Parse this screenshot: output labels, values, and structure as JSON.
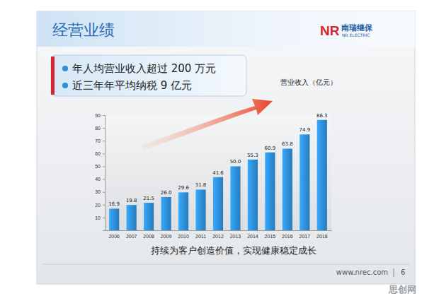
{
  "chart_data": {
    "type": "bar",
    "title": "经营业绩",
    "annotations": [
      "年人均营业收入超过 200 万元",
      "近三年年平均纳税 9 亿元"
    ],
    "y_label": "营业收入（亿元）",
    "caption": "持续为客户创造价值，实现健康稳定成长",
    "categories": [
      "2006",
      "2007",
      "2008",
      "2009",
      "2010",
      "2011",
      "2012",
      "2013",
      "2014",
      "2015",
      "2016",
      "2017",
      "2018"
    ],
    "values": [
      16.9,
      19.8,
      21.5,
      26.0,
      29.6,
      31.8,
      41.6,
      50.0,
      55.3,
      60.9,
      63.8,
      74.9,
      86.3
    ],
    "value_labels": [
      "16.9",
      "19.8",
      "21.5",
      "26.0",
      "29.6",
      "31.8",
      "41.6",
      "50.0",
      "55.3",
      "60.9",
      "63.8",
      "74.9",
      "86.3"
    ],
    "data_labels": true,
    "color": "#2e8fd8",
    "ylim": [
      0,
      90
    ],
    "yticks": [
      10,
      20,
      30,
      40,
      50,
      60,
      70,
      80,
      90
    ],
    "grid": false
  },
  "page": {
    "logo_mark": "NR",
    "logo_name": "南瑞继保",
    "logo_name_en": "NR ELECTRIC",
    "footer": "www.nrec.com",
    "page_number": "6",
    "watermark": "思创网"
  }
}
